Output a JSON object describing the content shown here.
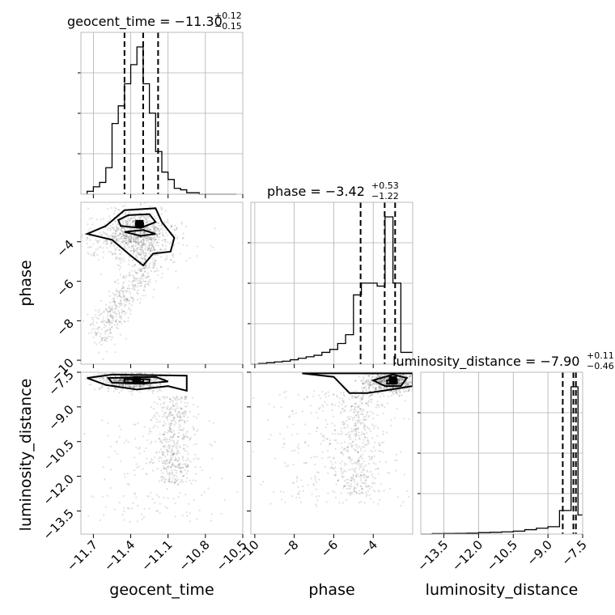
{
  "chart_data": {
    "type": "corner",
    "parameters": [
      {
        "name": "geocent_time",
        "label": "geocent_time",
        "range": [
          -11.8,
          -10.5
        ],
        "ticks": [
          -11.7,
          -11.4,
          -11.1,
          -10.8,
          -10.5
        ],
        "tick_labels": [
          "−11.7",
          "−11.4",
          "−11.1",
          "−10.8",
          "−10.5"
        ],
        "title_main": "geocent_time = −11.30",
        "title_upper": "+0.12",
        "title_lower": "−0.15",
        "quantiles": [
          -11.45,
          -11.3,
          -11.18
        ],
        "hist_edges": [
          -11.75,
          -11.7,
          -11.65,
          -11.6,
          -11.55,
          -11.5,
          -11.45,
          -11.4,
          -11.35,
          -11.3,
          -11.25,
          -11.2,
          -11.15,
          -11.1,
          -11.05,
          -11.0,
          -10.95,
          -10.9,
          -10.85,
          -10.8,
          -10.75,
          -10.7,
          -10.65,
          -10.6,
          -10.55
        ],
        "hist_counts": [
          0.02,
          0.05,
          0.08,
          0.18,
          0.48,
          0.6,
          0.75,
          0.88,
          1.0,
          0.75,
          0.55,
          0.29,
          0.15,
          0.1,
          0.04,
          0.03,
          0.01,
          0.01,
          0,
          0,
          0,
          0,
          0,
          0
        ]
      },
      {
        "name": "phase",
        "label": "phase",
        "range": [
          -10.2,
          -2.0
        ],
        "ticks": [
          -10,
          -8,
          -6,
          -4
        ],
        "tick_labels": [
          "−10",
          "−8",
          "−6",
          "−4"
        ],
        "title_main": "phase = −3.42",
        "title_upper": "+0.53",
        "title_lower": "−1.22",
        "quantiles": [
          -4.64,
          -3.42,
          -2.89
        ],
        "hist_edges": [
          -10.2,
          -9.8,
          -9.4,
          -9.0,
          -8.6,
          -8.2,
          -7.8,
          -7.4,
          -7.0,
          -6.6,
          -6.2,
          -5.8,
          -5.4,
          -5.0,
          -4.6,
          -4.2,
          -3.8,
          -3.4,
          -3.0,
          -2.6,
          -2.2,
          -2.0
        ],
        "hist_counts": [
          0.0,
          0.005,
          0.01,
          0.015,
          0.02,
          0.03,
          0.04,
          0.05,
          0.06,
          0.08,
          0.1,
          0.14,
          0.2,
          0.47,
          0.55,
          0.55,
          0.53,
          1.0,
          0.55,
          0.08,
          0.08
        ]
      },
      {
        "name": "luminosity_distance",
        "label": "luminosity_distance",
        "range": [
          -14.5,
          -7.5
        ],
        "ticks": [
          -13.5,
          -12.0,
          -10.5,
          -9.0,
          -7.5
        ],
        "tick_labels": [
          "−13.5",
          "−12.0",
          "−10.5",
          "−9.0",
          "−7.5"
        ],
        "title_main": "luminosity_distance = −7.90",
        "title_upper": "+0.11",
        "title_lower": "−0.46",
        "quantiles": [
          -8.36,
          -7.9,
          -7.79
        ],
        "hist_edges": [
          -14.5,
          -14.0,
          -13.5,
          -13.0,
          -12.5,
          -12.0,
          -11.5,
          -11.0,
          -10.5,
          -10.0,
          -9.5,
          -9.0,
          -8.5,
          -8.0,
          -7.7,
          -7.5
        ],
        "hist_counts": [
          0.0,
          0.003,
          0.004,
          0.005,
          0.006,
          0.01,
          0.012,
          0.015,
          0.02,
          0.03,
          0.04,
          0.05,
          0.16,
          1.0,
          0.13
        ]
      }
    ],
    "pairs": [
      {
        "x": "geocent_time",
        "y": "phase",
        "samples_density": "scatter cloud with contour levels",
        "peak": [
          -11.33,
          -3.1
        ]
      },
      {
        "x": "geocent_time",
        "y": "luminosity_distance",
        "samples_density": "scatter cloud with contour levels",
        "peak": [
          -11.35,
          -7.85
        ]
      },
      {
        "x": "phase",
        "y": "luminosity_distance",
        "samples_density": "scatter cloud with contour levels",
        "peak": [
          -3.0,
          -7.85
        ]
      }
    ],
    "grid": true
  }
}
